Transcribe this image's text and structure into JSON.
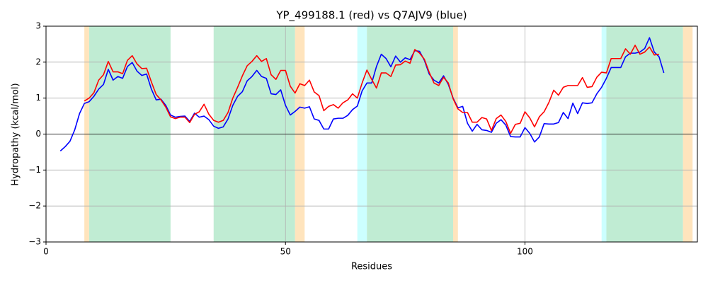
{
  "chart_data": {
    "type": "line",
    "title": "YP_499188.1 (red) vs Q7AJV9 (blue)",
    "x_label": "Residues",
    "y_label": "Hydropathy (kcal/mol)",
    "xlim": [
      0,
      136
    ],
    "ylim": [
      -3,
      3
    ],
    "xticks": [
      0,
      50,
      100
    ],
    "yticks": [
      {
        "value": -3,
        "label": "−3"
      },
      {
        "value": -2,
        "label": "−2"
      },
      {
        "value": -1,
        "label": "−1"
      },
      0,
      1,
      2,
      3
    ],
    "grid": true,
    "hlines": [
      0
    ],
    "spans": [
      {
        "start": 8,
        "end": 9,
        "color": "#ffe4bd"
      },
      {
        "start": 9,
        "end": 26,
        "color": "#c0ecd3"
      },
      {
        "start": 35,
        "end": 52,
        "color": "#c0ecd3"
      },
      {
        "start": 52,
        "end": 54,
        "color": "#ffe4bd"
      },
      {
        "start": 65,
        "end": 67,
        "color": "#ccffff"
      },
      {
        "start": 67,
        "end": 85,
        "color": "#c0ecd3"
      },
      {
        "start": 85,
        "end": 86,
        "color": "#ffe4bd"
      },
      {
        "start": 116,
        "end": 117,
        "color": "#ccffff"
      },
      {
        "start": 117,
        "end": 133,
        "color": "#c0ecd3"
      },
      {
        "start": 133,
        "end": 135,
        "color": "#ffe4bd"
      }
    ],
    "x": [
      3,
      4,
      5,
      6,
      7,
      8,
      9,
      10,
      11,
      12,
      13,
      14,
      15,
      16,
      17,
      18,
      19,
      20,
      21,
      22,
      23,
      24,
      25,
      26,
      27,
      28,
      29,
      30,
      31,
      32,
      33,
      34,
      35,
      36,
      37,
      38,
      39,
      40,
      41,
      42,
      43,
      44,
      45,
      46,
      47,
      48,
      49,
      50,
      51,
      52,
      53,
      54,
      55,
      56,
      57,
      58,
      59,
      60,
      61,
      62,
      63,
      64,
      65,
      66,
      67,
      68,
      69,
      70,
      71,
      72,
      73,
      74,
      75,
      76,
      77,
      78,
      79,
      80,
      81,
      82,
      83,
      84,
      85,
      86,
      87,
      88,
      89,
      90,
      91,
      92,
      93,
      94,
      95,
      96,
      97,
      98,
      99,
      100,
      101,
      102,
      103,
      104,
      105,
      106,
      107,
      108,
      109,
      110,
      111,
      112,
      113,
      114,
      115,
      116,
      117,
      118,
      119,
      120,
      121,
      122,
      123,
      124,
      125,
      126,
      127,
      128,
      129
    ],
    "series": [
      {
        "color": "#0000ff",
        "values": [
          -0.47,
          -0.35,
          -0.2,
          0.12,
          0.57,
          0.85,
          0.9,
          1.05,
          1.25,
          1.38,
          1.8,
          1.5,
          1.6,
          1.55,
          1.88,
          1.99,
          1.75,
          1.63,
          1.67,
          1.25,
          0.95,
          0.97,
          0.8,
          0.53,
          0.47,
          0.49,
          0.5,
          0.35,
          0.58,
          0.47,
          0.5,
          0.4,
          0.22,
          0.16,
          0.2,
          0.42,
          0.8,
          1.05,
          1.18,
          1.48,
          1.6,
          1.77,
          1.6,
          1.55,
          1.12,
          1.1,
          1.23,
          0.8,
          0.53,
          0.63,
          0.75,
          0.72,
          0.76,
          0.42,
          0.38,
          0.14,
          0.14,
          0.42,
          0.44,
          0.44,
          0.52,
          0.68,
          0.78,
          1.2,
          1.42,
          1.42,
          1.88,
          2.22,
          2.1,
          1.87,
          2.17,
          2.0,
          2.12,
          2.07,
          2.32,
          2.3,
          2.05,
          1.67,
          1.5,
          1.42,
          1.62,
          1.38,
          1.0,
          0.73,
          0.77,
          0.3,
          0.08,
          0.27,
          0.12,
          0.1,
          0.05,
          0.3,
          0.4,
          0.25,
          -0.07,
          -0.08,
          -0.08,
          0.18,
          0.02,
          -0.22,
          -0.08,
          0.29,
          0.28,
          0.28,
          0.32,
          0.6,
          0.43,
          0.86,
          0.57,
          0.87,
          0.85,
          0.87,
          1.12,
          1.3,
          1.55,
          1.85,
          1.85,
          1.85,
          2.15,
          2.25,
          2.25,
          2.28,
          2.38,
          2.68,
          2.28,
          2.15,
          1.7
        ]
      },
      {
        "color": "#ff0000",
        "values": [
          null,
          null,
          null,
          null,
          null,
          0.92,
          1.0,
          1.15,
          1.5,
          1.65,
          2.02,
          1.73,
          1.73,
          1.68,
          2.05,
          2.18,
          1.95,
          1.82,
          1.83,
          1.45,
          1.1,
          0.95,
          0.75,
          0.48,
          0.43,
          0.47,
          0.47,
          0.32,
          0.55,
          0.62,
          0.83,
          0.55,
          0.38,
          0.33,
          0.38,
          0.6,
          1.0,
          1.3,
          1.62,
          1.9,
          2.02,
          2.18,
          2.02,
          2.1,
          1.65,
          1.52,
          1.77,
          1.77,
          1.33,
          1.14,
          1.4,
          1.35,
          1.5,
          1.17,
          1.07,
          0.65,
          0.77,
          0.82,
          0.72,
          0.87,
          0.95,
          1.12,
          1.0,
          1.42,
          1.78,
          1.52,
          1.28,
          1.7,
          1.7,
          1.6,
          1.92,
          1.93,
          2.03,
          1.97,
          2.35,
          2.25,
          2.08,
          1.72,
          1.42,
          1.35,
          1.58,
          1.42,
          0.98,
          0.7,
          0.6,
          0.6,
          0.33,
          0.33,
          0.46,
          0.42,
          0.1,
          0.43,
          0.53,
          0.35,
          0.02,
          0.27,
          0.3,
          0.62,
          0.45,
          0.2,
          0.48,
          0.62,
          0.88,
          1.22,
          1.08,
          1.3,
          1.35,
          1.35,
          1.35,
          1.57,
          1.3,
          1.32,
          1.58,
          1.72,
          1.7,
          2.1,
          2.1,
          2.1,
          2.37,
          2.22,
          2.47,
          2.22,
          2.28,
          2.42,
          2.2,
          2.22,
          null
        ]
      }
    ]
  }
}
